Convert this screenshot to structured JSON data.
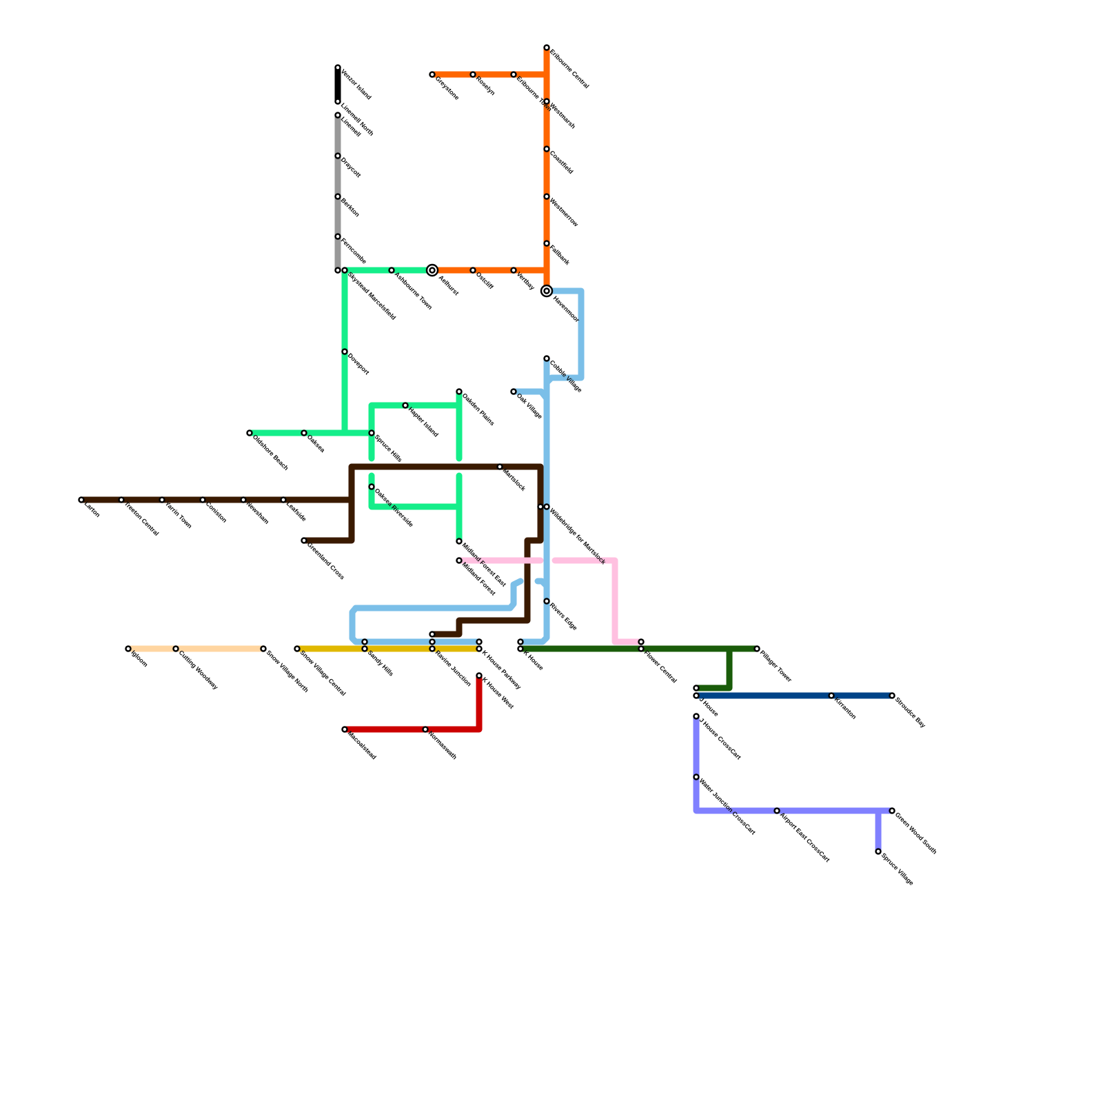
{
  "lines": {
    "black": {
      "color": "#000000"
    },
    "grey": {
      "color": "#999999"
    },
    "green": {
      "color": "#14ee8a"
    },
    "orange": {
      "color": "#ff6600"
    },
    "lightblue": {
      "color": "#7bbfe8"
    },
    "brown": {
      "color": "#3a1a00"
    },
    "pink": {
      "color": "#ffc0e0"
    },
    "darkgreen": {
      "color": "#1a5c0a"
    },
    "navy": {
      "color": "#004488"
    },
    "periwinkle": {
      "color": "#8080ff"
    },
    "yellow": {
      "color": "#e0b800"
    },
    "peach": {
      "color": "#ffd5a0"
    },
    "red": {
      "color": "#cc0000"
    }
  },
  "stations": [
    "Venzor Island",
    "Linemell North",
    "Linemell",
    "Draycott",
    "Berkton",
    "Ferncombe",
    "Skystead Marcelsfield",
    "Ashbourne Town",
    "Aelhurst",
    "Doveport",
    "Oldshore Beach",
    "Oaksea",
    "Spruce Hills",
    "Hapter Island",
    "Oakden Plains",
    "Oaksea Riverside",
    "Midland Forest East",
    "Greystone",
    "Roselyn",
    "Eribourne Town",
    "Eribourne Central",
    "Westmarsh",
    "Coastfield",
    "Westmerrow",
    "Fallbank",
    "Ostcliff",
    "Vertbay",
    "Havenmoor",
    "Cobble Village",
    "Oak Village",
    "Wildebridge for Martslock",
    "Rivers Edge",
    "K House",
    "Sandy Hills",
    "Ravine Junction",
    "K House Parkway",
    "Larton",
    "Treeton Central",
    "Yarrin Town",
    "Coniston",
    "Newsham",
    "Leafside",
    "Greenland Cross",
    "Martslock",
    "Midland Forest",
    "Flower Central",
    "Pillager Tower",
    "J House",
    "Kirranton",
    "Stroudce Bay",
    "J House CrossCart",
    "Water Junction CrossCart",
    "Airport East CrossCart",
    "Green Wood South",
    "Spruce Village",
    "Snow Village Central",
    "Igloom",
    "Cutting Woodway",
    "Snow Village North",
    "Macoalstead",
    "Normaswath",
    "K House West"
  ]
}
